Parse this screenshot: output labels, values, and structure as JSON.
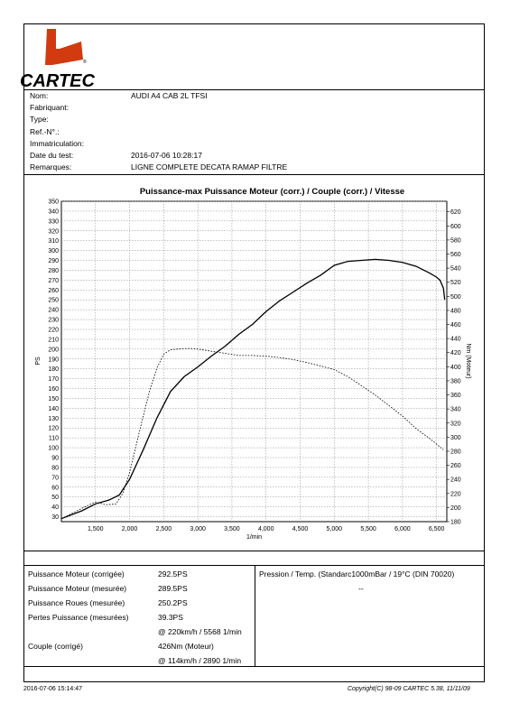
{
  "logo": {
    "brand": "CARTEC",
    "registered": "®"
  },
  "info": [
    {
      "label": "Nom:",
      "value": "AUDI A4 CAB 2L TFSI"
    },
    {
      "label": "Fabriquant:",
      "value": ""
    },
    {
      "label": "Type:",
      "value": ""
    },
    {
      "label": "Ref.-N°.:",
      "value": ""
    },
    {
      "label": "Immatriculation:",
      "value": ""
    },
    {
      "label": "Date du test:",
      "value": "2016-07-06 10:28:17"
    },
    {
      "label": "Remarques:",
      "value": "LIGNE COMPLETE DECATA RAMAP FILTRE"
    }
  ],
  "chart_data": {
    "type": "line",
    "title": "Puissance-max Puissance Moteur (corr.) / Couple (corr.) / Vitesse",
    "xlabel": "1/min",
    "ylabel_left": "PS",
    "ylabel_right": "Nm (Moteur)",
    "xlim": [
      1000,
      6650
    ],
    "ylim_left": [
      25,
      350
    ],
    "ylim_right": [
      180,
      635
    ],
    "x_ticks": [
      1500,
      2000,
      2500,
      3000,
      3500,
      4000,
      4500,
      5000,
      5500,
      6000,
      6500
    ],
    "x_tick_labels": [
      "1,500",
      "2,000",
      "2,500",
      "3,000",
      "3,500",
      "4,000",
      "4,500",
      "5,000",
      "5,500",
      "6,000",
      "6,500"
    ],
    "y_left_ticks": [
      30,
      40,
      50,
      60,
      70,
      80,
      90,
      100,
      110,
      120,
      130,
      140,
      150,
      160,
      170,
      180,
      190,
      200,
      210,
      220,
      230,
      240,
      250,
      260,
      270,
      280,
      290,
      300,
      310,
      320,
      330,
      340,
      350
    ],
    "y_right_ticks": [
      180,
      200,
      220,
      240,
      260,
      280,
      300,
      320,
      340,
      360,
      380,
      400,
      420,
      440,
      460,
      480,
      500,
      520,
      540,
      560,
      580,
      600,
      620
    ],
    "grid": true,
    "series": [
      {
        "axis": "left",
        "style": "solid",
        "x": [
          1000,
          1300,
          1500,
          1700,
          1850,
          2000,
          2200,
          2400,
          2600,
          2800,
          3000,
          3200,
          3400,
          3600,
          3800,
          4000,
          4200,
          4400,
          4600,
          4800,
          5000,
          5200,
          5400,
          5600,
          5800,
          6000,
          6200,
          6400,
          6500,
          6550,
          6600,
          6620
        ],
        "y": [
          28,
          36,
          43,
          47,
          52,
          68,
          98,
          130,
          157,
          172,
          182,
          193,
          203,
          215,
          225,
          238,
          249,
          258,
          267,
          275,
          285,
          289,
          290,
          291,
          290,
          288,
          284,
          277,
          273,
          270,
          262,
          250
        ]
      },
      {
        "axis": "right",
        "style": "dotted",
        "x": [
          1000,
          1300,
          1500,
          1650,
          1800,
          1900,
          2000,
          2100,
          2200,
          2300,
          2400,
          2500,
          2600,
          2700,
          2800,
          2900,
          3000,
          3200,
          3400,
          3600,
          3800,
          4000,
          4200,
          4400,
          4600,
          4800,
          5000,
          5200,
          5400,
          5600,
          5800,
          6000,
          6200,
          6400,
          6600
        ],
        "y": [
          184,
          199,
          208,
          204,
          205,
          220,
          250,
          290,
          330,
          368,
          398,
          418,
          424,
          425,
          426,
          426,
          425,
          422,
          419,
          416,
          416,
          415,
          413,
          410,
          406,
          401,
          396,
          386,
          373,
          360,
          345,
          330,
          312,
          298,
          282
        ]
      }
    ]
  },
  "results": [
    {
      "label": "Puissance Moteur (corrigée)",
      "value": "292.5PS"
    },
    {
      "label": "Puissance Moteur (mesurée)",
      "value": "289.5PS"
    },
    {
      "label": "Puissance Roues (mesurée)",
      "value": "250.2PS"
    },
    {
      "label": "Pertes Puissance (mesurées)",
      "value": "39.3PS"
    },
    {
      "label": "",
      "value": "@ 220km/h / 5568 1/min"
    },
    {
      "label": "Couple (corrigé)",
      "value": "426Nm (Moteur)"
    },
    {
      "label": "",
      "value": "@ 114km/h / 2890 1/min"
    }
  ],
  "conditions": {
    "text": "Pression / Temp. (Standarc1000mBar / 19°C   (DIN 70020)",
    "value": "--"
  },
  "footer": {
    "left": "2016-07-06 15:14:47",
    "right": "Copyright(C) 98-09 CARTEC 5.38, 11/11/09"
  }
}
